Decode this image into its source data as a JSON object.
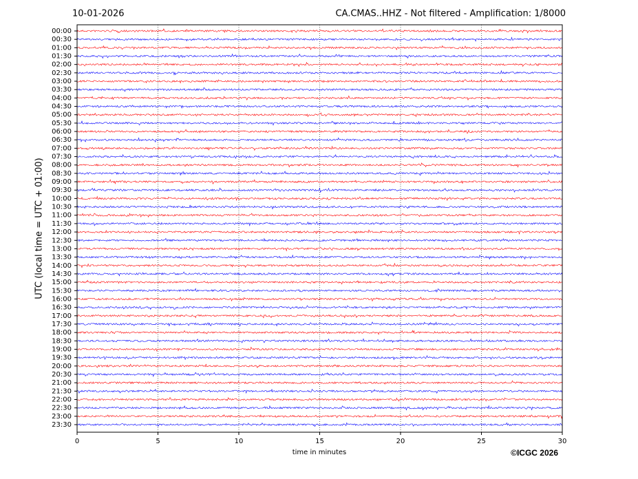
{
  "chart_data": {
    "type": "helicorder",
    "date": "10-01-2026",
    "title": "CA.CMAS..HHZ - Not filtered - Amplification: 1/8000",
    "y_label": "UTC (local time = UTC + 01:00)",
    "x_label": "time in minutes",
    "copyright": "©ICGC 2026",
    "categories": [
      "00:00",
      "00:30",
      "01:00",
      "01:30",
      "02:00",
      "02:30",
      "03:00",
      "03:30",
      "04:00",
      "04:30",
      "05:00",
      "05:30",
      "06:00",
      "06:30",
      "07:00",
      "07:30",
      "08:00",
      "08:30",
      "09:00",
      "09:30",
      "10:00",
      "10:30",
      "11:00",
      "11:30",
      "12:00",
      "12:30",
      "13:00",
      "13:30",
      "14:00",
      "14:30",
      "15:00",
      "15:30",
      "16:00",
      "16:30",
      "17:00",
      "17:30",
      "18:00",
      "18:30",
      "19:00",
      "19:30",
      "20:00",
      "20:30",
      "21:00",
      "21:30",
      "22:00",
      "22:30",
      "23:00",
      "23:30"
    ],
    "colors": [
      "#ff0000",
      "#0000ff"
    ],
    "xlim": [
      0,
      30
    ],
    "xticks": [
      0,
      5,
      10,
      15,
      20,
      25,
      30
    ],
    "grid": true
  }
}
